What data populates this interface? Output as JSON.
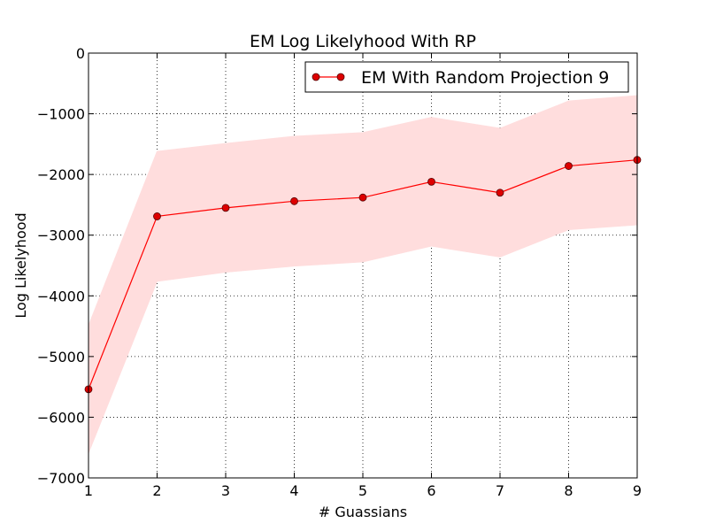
{
  "chart_data": {
    "type": "line",
    "title": "EM Log Likelyhood With RP",
    "xlabel": "# Guassians",
    "ylabel": "Log Likelyhood",
    "xlim": [
      1,
      9
    ],
    "ylim": [
      -7000,
      0
    ],
    "x": [
      1,
      2,
      3,
      4,
      5,
      6,
      7,
      8,
      9
    ],
    "xticks": [
      "1",
      "2",
      "3",
      "4",
      "5",
      "6",
      "7",
      "8",
      "9"
    ],
    "yticks": [
      0,
      -1000,
      -2000,
      -3000,
      -4000,
      -5000,
      -6000,
      -7000
    ],
    "ytick_labels": [
      "0",
      "−1000",
      "−2000",
      "−3000",
      "−4000",
      "−5000",
      "−6000",
      "−7000"
    ],
    "grid": true,
    "legend_position": "top-right",
    "series": [
      {
        "name": "EM With Random Projection 9",
        "values": [
          -5540,
          -2690,
          -2550,
          -2440,
          -2380,
          -2120,
          -2300,
          -1860,
          -1760
        ],
        "band_upper": [
          -4490,
          -1620,
          -1490,
          -1370,
          -1310,
          -1060,
          -1240,
          -790,
          -700
        ],
        "band_lower": [
          -6590,
          -3760,
          -3610,
          -3510,
          -3440,
          -3180,
          -3360,
          -2910,
          -2830
        ],
        "color": "#ff0000",
        "band_color": "#ffdddd",
        "marker_fill": "#dd0000",
        "marker_edge": "#550000"
      }
    ]
  }
}
